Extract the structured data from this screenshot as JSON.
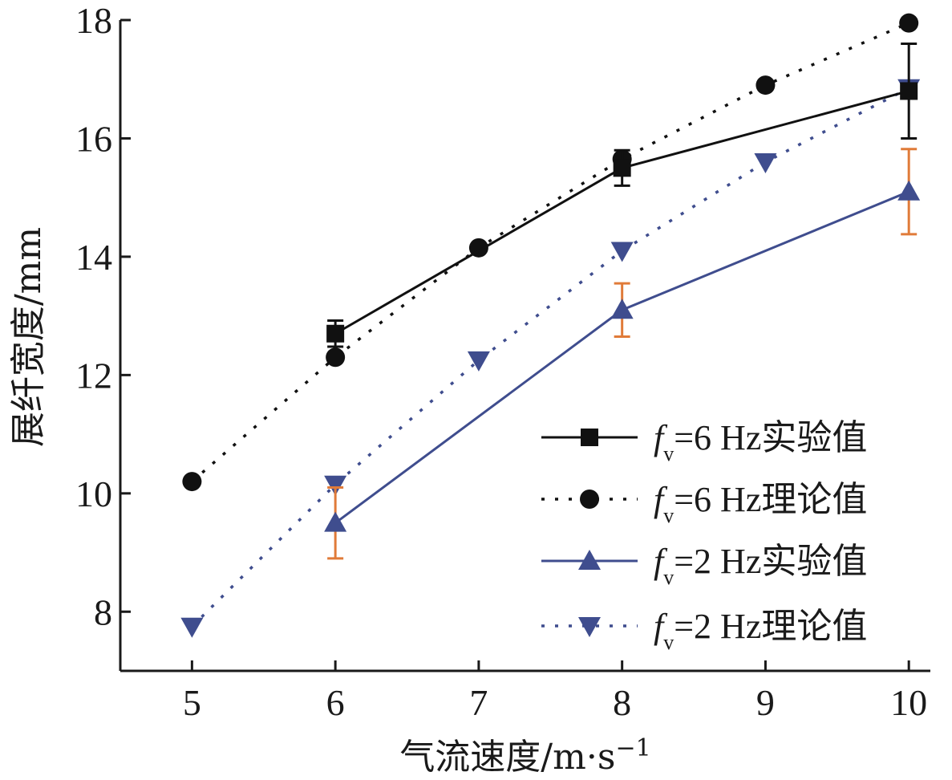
{
  "chart_data": {
    "type": "line",
    "xlabel": "气流速度/m·s",
    "xlabel_exp": "−1",
    "ylabel": "展纤宽度/mm",
    "xlim": [
      4.5,
      10.15
    ],
    "ylim": [
      7,
      18
    ],
    "xticks": [
      5,
      6,
      7,
      8,
      9,
      10
    ],
    "yticks": [
      8,
      10,
      12,
      14,
      16,
      18
    ],
    "grid": false,
    "legend_position": "bottom-right",
    "series": [
      {
        "legend_prefix": "f",
        "legend_sub": "v",
        "legend_suffix": "=6 Hz实验值",
        "line_style": "solid",
        "marker": "square",
        "color": "#111111",
        "errorbar_color": "#111111",
        "x": [
          6,
          8,
          10
        ],
        "y": [
          12.7,
          15.5,
          16.8
        ],
        "err": [
          0.22,
          0.3,
          0.8
        ]
      },
      {
        "legend_prefix": "f",
        "legend_sub": "v",
        "legend_suffix": "=6 Hz理论值",
        "line_style": "dotted",
        "marker": "circle",
        "color": "#111111",
        "x": [
          5,
          6,
          7,
          8,
          9,
          10
        ],
        "y": [
          10.2,
          12.3,
          14.15,
          15.65,
          16.9,
          17.95
        ]
      },
      {
        "legend_prefix": "f",
        "legend_sub": "v",
        "legend_suffix": "=2 Hz实验值",
        "line_style": "solid",
        "marker": "triangle-up",
        "color": "#3f4d8e",
        "errorbar_color": "#e07b39",
        "x": [
          6,
          8,
          10
        ],
        "y": [
          9.5,
          13.1,
          15.1
        ],
        "err": [
          0.6,
          0.45,
          0.72
        ]
      },
      {
        "legend_prefix": "f",
        "legend_sub": "v",
        "legend_suffix": "=2 Hz理论值",
        "line_style": "dotted",
        "marker": "triangle-down",
        "color": "#3f4d8e",
        "x": [
          5,
          6,
          7,
          8,
          9,
          10
        ],
        "y": [
          7.75,
          10.15,
          12.25,
          14.1,
          15.6,
          16.85
        ]
      }
    ]
  }
}
